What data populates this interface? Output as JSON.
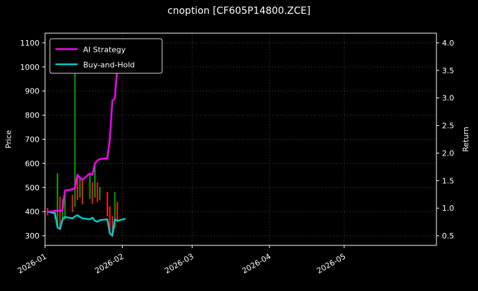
{
  "chart_data": {
    "type": "mixed (ohlc high-low bars + line series)",
    "title": "cnoption [CF605P14800.ZCE]",
    "colors": {
      "background": "#000000",
      "text": "#ffffff",
      "grid": "#4a4a4a",
      "spine": "#ffffff",
      "up_bar": "#00a000",
      "down_bar": "#ff1a1a",
      "ai_strategy": "#ff00ff",
      "buy_and_hold": "#00cccc"
    },
    "left_axis": {
      "label": "Price",
      "ticks": [
        300,
        400,
        500,
        600,
        700,
        800,
        900,
        1000,
        1100
      ],
      "range": [
        260,
        1140
      ]
    },
    "right_axis": {
      "label": "Return",
      "ticks": [
        0.5,
        1.0,
        1.5,
        2.0,
        2.5,
        3.0,
        3.5,
        4.0
      ],
      "range": [
        0.325,
        4.175
      ]
    },
    "x_axis": {
      "tick_labels": [
        "2026-01",
        "2026-02",
        "2026-03",
        "2026-04",
        "2026-05"
      ],
      "tick_dates": [
        "2026-01-01",
        "2026-02-01",
        "2026-03-01",
        "2026-04-01",
        "2026-05-01"
      ],
      "range": [
        "2026-01-01",
        "2026-06-07"
      ],
      "label_rotation_deg": -30
    },
    "legend": [
      {
        "label": "AI Strategy",
        "color_key": "ai_strategy"
      },
      {
        "label": "Buy-and-Hold",
        "color_key": "buy_and_hold"
      }
    ],
    "price_bars": [
      {
        "date": "2026-01-02",
        "low": 385,
        "high": 415,
        "dir": "down"
      },
      {
        "date": "2026-01-05",
        "low": 370,
        "high": 408,
        "dir": "down"
      },
      {
        "date": "2026-01-06",
        "low": 330,
        "high": 560,
        "dir": "up"
      },
      {
        "date": "2026-01-07",
        "low": 335,
        "high": 462,
        "dir": "down"
      },
      {
        "date": "2026-01-08",
        "low": 358,
        "high": 452,
        "dir": "up"
      },
      {
        "date": "2026-01-09",
        "low": 368,
        "high": 480,
        "dir": "up"
      },
      {
        "date": "2026-01-12",
        "low": 398,
        "high": 470,
        "dir": "down"
      },
      {
        "date": "2026-01-13",
        "low": 420,
        "high": 1000,
        "dir": "up"
      },
      {
        "date": "2026-01-14",
        "low": 448,
        "high": 556,
        "dir": "down"
      },
      {
        "date": "2026-01-15",
        "low": 458,
        "high": 546,
        "dir": "up"
      },
      {
        "date": "2026-01-16",
        "low": 430,
        "high": 532,
        "dir": "down"
      },
      {
        "date": "2026-01-19",
        "low": 452,
        "high": 562,
        "dir": "up"
      },
      {
        "date": "2026-01-20",
        "low": 432,
        "high": 522,
        "dir": "down"
      },
      {
        "date": "2026-01-21",
        "low": 458,
        "high": 600,
        "dir": "up"
      },
      {
        "date": "2026-01-22",
        "low": 440,
        "high": 522,
        "dir": "down"
      },
      {
        "date": "2026-01-23",
        "low": 448,
        "high": 502,
        "dir": "up"
      },
      {
        "date": "2026-01-26",
        "low": 380,
        "high": 482,
        "dir": "down"
      },
      {
        "date": "2026-01-27",
        "low": 310,
        "high": 422,
        "dir": "down"
      },
      {
        "date": "2026-01-28",
        "low": 295,
        "high": 382,
        "dir": "down"
      },
      {
        "date": "2026-01-29",
        "low": 330,
        "high": 482,
        "dir": "up"
      },
      {
        "date": "2026-01-30",
        "low": 358,
        "high": 440,
        "dir": "down"
      }
    ],
    "series": [
      {
        "name": "AI Strategy",
        "color_key": "ai_strategy",
        "points": [
          [
            "2026-01-02",
            400
          ],
          [
            "2026-01-05",
            402
          ],
          [
            "2026-01-06",
            405
          ],
          [
            "2026-01-07",
            403
          ],
          [
            "2026-01-08",
            405
          ],
          [
            "2026-01-09",
            488
          ],
          [
            "2026-01-12",
            492
          ],
          [
            "2026-01-13",
            498
          ],
          [
            "2026-01-14",
            553
          ],
          [
            "2026-01-15",
            540
          ],
          [
            "2026-01-16",
            532
          ],
          [
            "2026-01-19",
            558
          ],
          [
            "2026-01-20",
            552
          ],
          [
            "2026-01-21",
            600
          ],
          [
            "2026-01-22",
            612
          ],
          [
            "2026-01-23",
            618
          ],
          [
            "2026-01-26",
            622
          ],
          [
            "2026-01-27",
            700
          ],
          [
            "2026-01-28",
            860
          ],
          [
            "2026-01-29",
            870
          ],
          [
            "2026-01-30",
            1000
          ],
          [
            "2026-02-02",
            1020
          ]
        ]
      },
      {
        "name": "Buy-and-Hold",
        "color_key": "buy_and_hold",
        "points": [
          [
            "2026-01-02",
            400
          ],
          [
            "2026-01-05",
            393
          ],
          [
            "2026-01-06",
            335
          ],
          [
            "2026-01-07",
            328
          ],
          [
            "2026-01-08",
            368
          ],
          [
            "2026-01-09",
            378
          ],
          [
            "2026-01-12",
            372
          ],
          [
            "2026-01-13",
            380
          ],
          [
            "2026-01-14",
            385
          ],
          [
            "2026-01-15",
            378
          ],
          [
            "2026-01-16",
            372
          ],
          [
            "2026-01-19",
            368
          ],
          [
            "2026-01-20",
            375
          ],
          [
            "2026-01-21",
            362
          ],
          [
            "2026-01-22",
            358
          ],
          [
            "2026-01-23",
            365
          ],
          [
            "2026-01-26",
            368
          ],
          [
            "2026-01-27",
            310
          ],
          [
            "2026-01-28",
            300
          ],
          [
            "2026-01-29",
            368
          ],
          [
            "2026-01-30",
            362
          ],
          [
            "2026-02-02",
            370
          ]
        ]
      }
    ]
  }
}
